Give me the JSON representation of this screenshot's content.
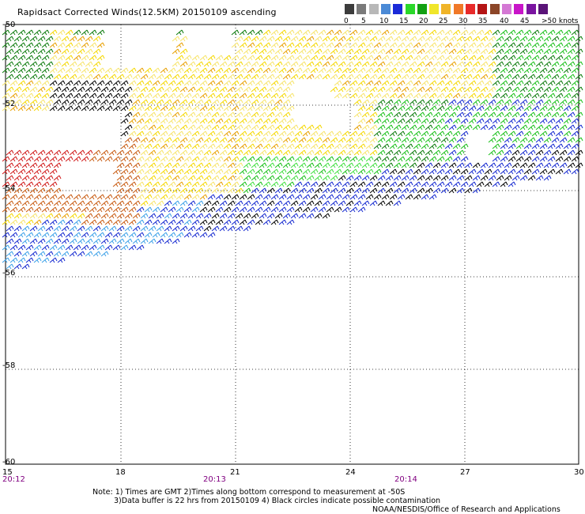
{
  "title": "Rapidsact Corrected Winds(12.5KM) 20150109 ascending",
  "speed_scale": {
    "colors": [
      "#3c3c3c",
      "#7a7a7a",
      "#b8b8b8",
      "#4b8ad6",
      "#1a2ad8",
      "#2ad82a",
      "#12a012",
      "#f0e62a",
      "#f0b428",
      "#f07828",
      "#e82a2a",
      "#b41414",
      "#8c4628",
      "#d478d4",
      "#c814c8",
      "#7a14a0",
      "#5a1478"
    ],
    "labels": [
      "0",
      "5",
      "10",
      "15",
      "20",
      "25",
      "30",
      "35",
      "40",
      "45",
      ">50 knots"
    ]
  },
  "axes": {
    "y_labels": [
      "-50",
      "-52",
      "-54",
      "-56",
      "-58",
      "-60"
    ],
    "x_labels": [
      "15",
      "18",
      "21",
      "24",
      "27",
      "30"
    ],
    "time_labels": [
      "20:12",
      "20:13",
      "20:14"
    ]
  },
  "notes": [
    "Note: 1) Times are GMT 2)Times along bottom correspond to measurement at -50S",
    "3)Data buffer is 22 hrs from 20150109 4) Black circles indicate possible contamination",
    "NOAA/NESDIS/Office of Research and Applications"
  ],
  "colors": {
    "black": "#000000",
    "yellow": "#f5d800",
    "light_yellow": "#f7e46a",
    "orange": "#e8a000",
    "brown_orange": "#c85a10",
    "red": "#d01818",
    "dark_green": "#0a7a0a",
    "green": "#18c018",
    "light_green": "#40e040",
    "blue": "#1428d0",
    "light_blue": "#3aa0e8"
  }
}
